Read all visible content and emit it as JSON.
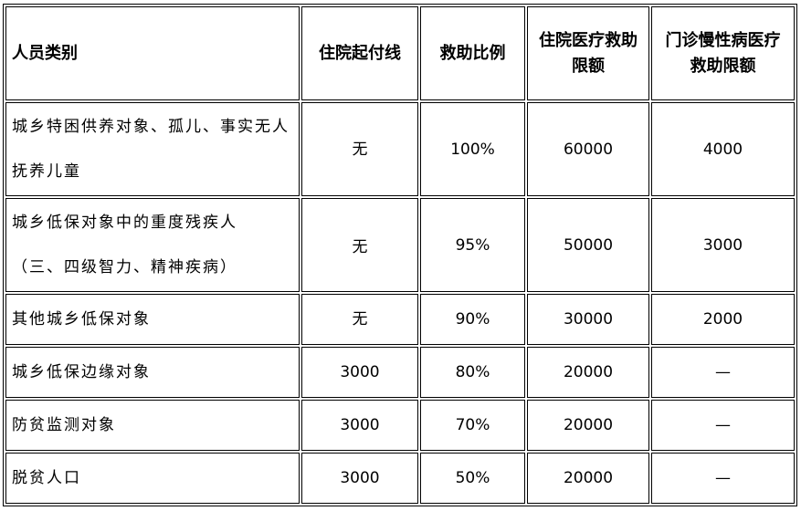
{
  "headers": [
    "人员类别",
    "住院起付线",
    "救助比例",
    "住院医疗救助限额",
    "门诊慢性病医疗救助限额"
  ],
  "rows": [
    [
      "城乡特困供养对象、孤儿、事实无人抚养儿童",
      "无",
      "100%",
      "60000",
      "4000"
    ],
    [
      "城乡低保对象中的重度残疾人（三、四级智力、精神疾病）",
      "无",
      "95%",
      "50000",
      "3000"
    ],
    [
      "其他城乡低保对象",
      "无",
      "90%",
      "30000",
      "2000"
    ],
    [
      "城乡低保边缘对象",
      "3000",
      "80%",
      "20000",
      "—"
    ],
    [
      "防贫监测对象",
      "3000",
      "70%",
      "20000",
      "—"
    ],
    [
      "脱贫人口",
      "3000",
      "50%",
      "20000",
      "—"
    ]
  ]
}
